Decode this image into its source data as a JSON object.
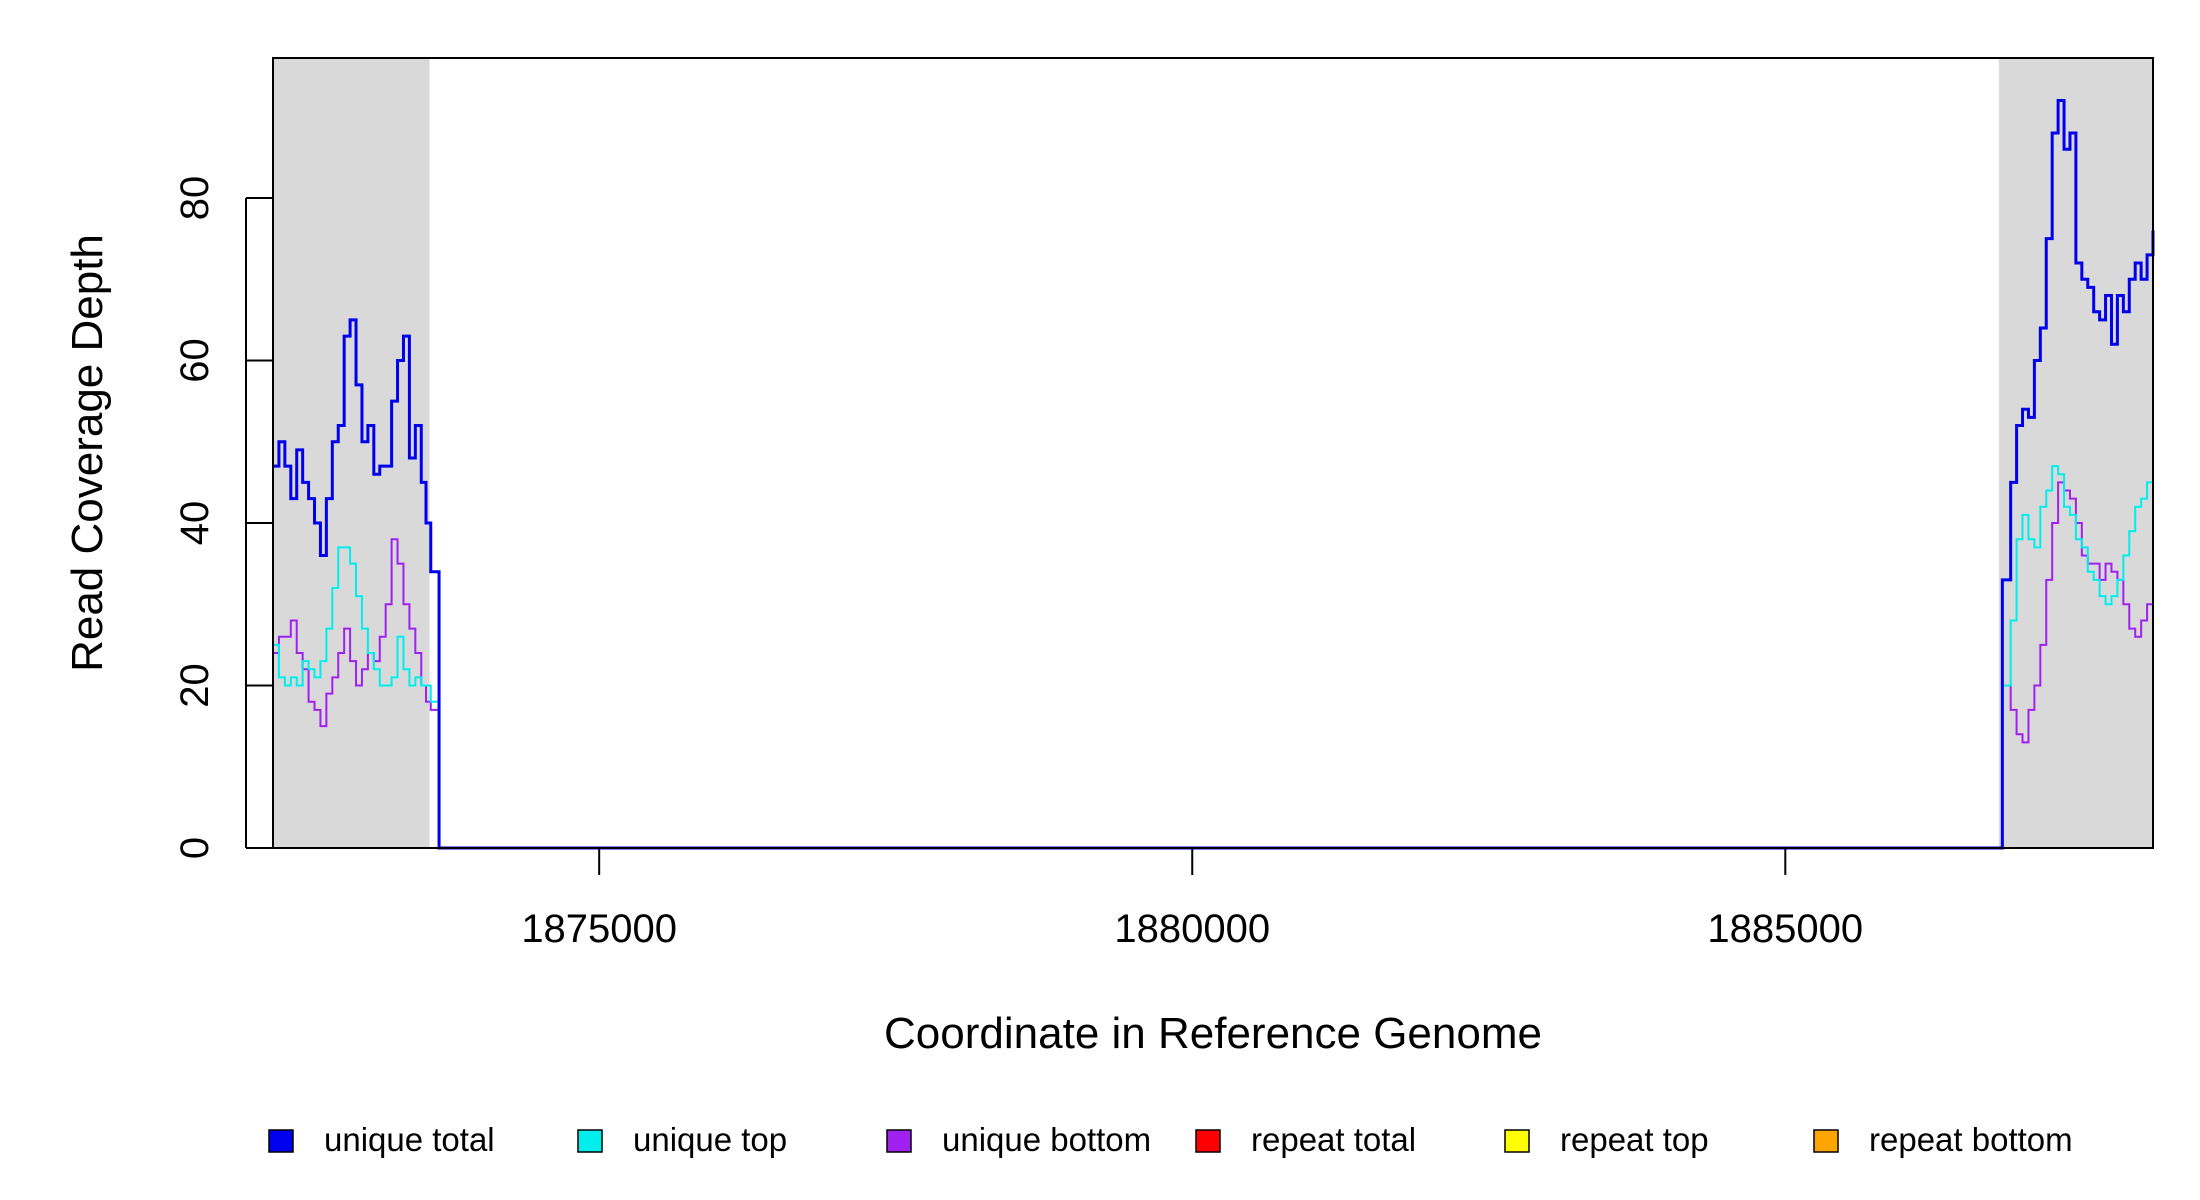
{
  "chart_data": {
    "type": "line",
    "title": "",
    "xlabel": "Coordinate in Reference Genome",
    "ylabel": "Read Coverage Depth",
    "xlim": [
      1872250,
      1888100
    ],
    "ylim": [
      0,
      97
    ],
    "x_ticks": [
      1875000,
      1880000,
      1885000
    ],
    "x_tick_labels": [
      "1875000",
      "1880000",
      "1885000"
    ],
    "y_ticks": [
      0,
      20,
      40,
      60,
      80
    ],
    "y_tick_labels": [
      "0",
      "20",
      "40",
      "60",
      "80"
    ],
    "grid": false,
    "legend_position": "bottom",
    "shaded_regions": [
      {
        "x0": 1872250,
        "x1": 1873570,
        "color": "#d9d9d9"
      },
      {
        "x0": 1886800,
        "x1": 1888100,
        "color": "#d9d9d9"
      }
    ],
    "series": [
      {
        "name": "unique total",
        "color": "#0000ee",
        "width": 3,
        "x": [
          1872250,
          1872300,
          1872350,
          1872400,
          1872450,
          1872500,
          1872550,
          1872600,
          1872650,
          1872700,
          1872750,
          1872800,
          1872850,
          1872900,
          1872950,
          1873000,
          1873050,
          1873100,
          1873150,
          1873200,
          1873250,
          1873300,
          1873350,
          1873400,
          1873450,
          1873500,
          1873540,
          1873580,
          1873650,
          1886700,
          1886800,
          1886830,
          1886900,
          1886950,
          1887000,
          1887050,
          1887100,
          1887150,
          1887200,
          1887250,
          1887300,
          1887350,
          1887400,
          1887450,
          1887500,
          1887550,
          1887600,
          1887650,
          1887700,
          1887750,
          1887800,
          1887850,
          1887900,
          1887950,
          1888000,
          1888050,
          1888100
        ],
        "y": [
          47,
          50,
          47,
          43,
          49,
          45,
          43,
          40,
          36,
          43,
          50,
          52,
          63,
          65,
          57,
          50,
          52,
          46,
          47,
          47,
          55,
          60,
          63,
          48,
          52,
          45,
          40,
          34,
          0,
          0,
          0,
          33,
          45,
          52,
          54,
          53,
          60,
          64,
          75,
          88,
          92,
          86,
          88,
          72,
          70,
          69,
          66,
          65,
          68,
          62,
          68,
          66,
          70,
          72,
          70,
          73,
          76
        ]
      },
      {
        "name": "unique top",
        "color": "#00eeee",
        "width": 2,
        "x": [
          1872250,
          1872300,
          1872350,
          1872400,
          1872450,
          1872500,
          1872550,
          1872600,
          1872650,
          1872700,
          1872750,
          1872800,
          1872850,
          1872900,
          1872950,
          1873000,
          1873050,
          1873100,
          1873150,
          1873200,
          1873250,
          1873300,
          1873350,
          1873400,
          1873450,
          1873500,
          1873540,
          1873580,
          1873650,
          1886700,
          1886800,
          1886830,
          1886900,
          1886950,
          1887000,
          1887050,
          1887100,
          1887150,
          1887200,
          1887250,
          1887300,
          1887350,
          1887400,
          1887450,
          1887500,
          1887550,
          1887600,
          1887650,
          1887700,
          1887750,
          1887800,
          1887850,
          1887900,
          1887950,
          1888000,
          1888050,
          1888100
        ],
        "y": [
          25,
          21,
          20,
          21,
          20,
          23,
          22,
          21,
          23,
          27,
          32,
          37,
          37,
          35,
          31,
          27,
          24,
          22,
          20,
          20,
          21,
          26,
          22,
          20,
          21,
          20,
          20,
          18,
          0,
          0,
          0,
          20,
          28,
          38,
          41,
          38,
          37,
          42,
          44,
          47,
          46,
          42,
          41,
          38,
          37,
          34,
          33,
          31,
          30,
          31,
          33,
          36,
          39,
          42,
          43,
          45,
          45
        ]
      },
      {
        "name": "unique bottom",
        "color": "#a020f0",
        "width": 2,
        "x": [
          1872250,
          1872300,
          1872350,
          1872400,
          1872450,
          1872500,
          1872550,
          1872600,
          1872650,
          1872700,
          1872750,
          1872800,
          1872850,
          1872900,
          1872950,
          1873000,
          1873050,
          1873100,
          1873150,
          1873200,
          1873250,
          1873300,
          1873350,
          1873400,
          1873450,
          1873500,
          1873540,
          1873580,
          1873650,
          1886700,
          1886800,
          1886830,
          1886900,
          1886950,
          1887000,
          1887050,
          1887100,
          1887150,
          1887200,
          1887250,
          1887300,
          1887350,
          1887400,
          1887450,
          1887500,
          1887550,
          1887600,
          1887650,
          1887700,
          1887750,
          1887800,
          1887850,
          1887900,
          1887950,
          1888000,
          1888050,
          1888100
        ],
        "y": [
          24,
          26,
          26,
          28,
          24,
          22,
          18,
          17,
          15,
          19,
          21,
          24,
          27,
          23,
          20,
          22,
          24,
          23,
          26,
          30,
          38,
          35,
          30,
          27,
          24,
          20,
          18,
          17,
          0,
          0,
          0,
          20,
          17,
          14,
          13,
          17,
          20,
          25,
          33,
          40,
          45,
          44,
          43,
          40,
          36,
          35,
          35,
          33,
          35,
          34,
          33,
          30,
          27,
          26,
          28,
          30,
          31
        ]
      },
      {
        "name": "repeat total",
        "color": "#ff0000",
        "width": 2,
        "x": [
          1872250,
          1888100
        ],
        "y": [
          0,
          0
        ]
      },
      {
        "name": "repeat top",
        "color": "#ffff00",
        "width": 2,
        "x": [
          1872250,
          1888100
        ],
        "y": [
          0,
          0
        ]
      },
      {
        "name": "repeat bottom",
        "color": "#ffa500",
        "width": 2,
        "x": [
          1872250,
          1888100
        ],
        "y": [
          0,
          0
        ]
      }
    ]
  }
}
